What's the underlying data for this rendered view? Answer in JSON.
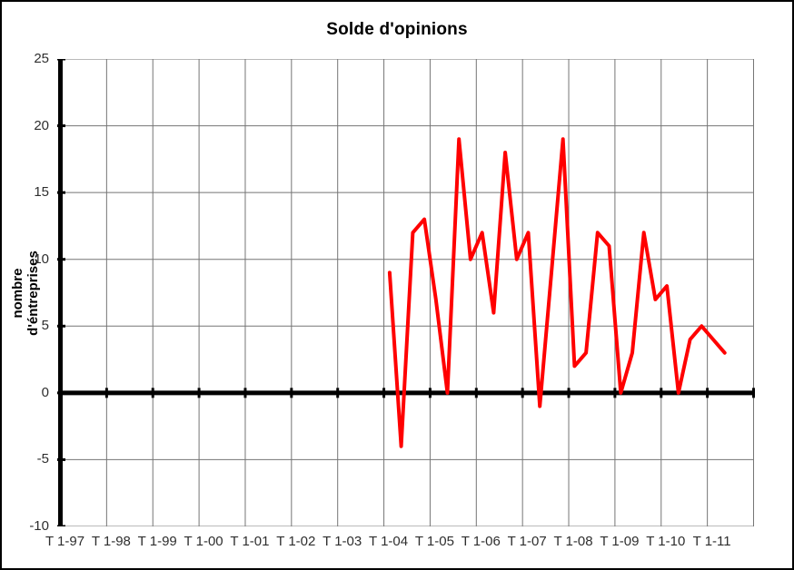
{
  "window": {
    "background_color": "#ffffff",
    "border_color": "#000000"
  },
  "chart_data": {
    "type": "line",
    "title": "Solde d'opinions",
    "ylabel": "nombre d'éntreprises",
    "xlabel": "",
    "ylim": [
      -10,
      25
    ],
    "y_ticks": [
      25,
      20,
      15,
      10,
      5,
      0,
      -5,
      -10
    ],
    "x_tick_labels": [
      "T 1-97",
      "T 1-98",
      "T 1-99",
      "T 1-00",
      "T 1-01",
      "T 1-02",
      "T 1-03",
      "T 1-04",
      "T 1-05",
      "T 1-06",
      "T 1-07",
      "T 1-08",
      "T 1-09",
      "T 1-10",
      "T 1-11"
    ],
    "x_axis_start_year": 1997,
    "quarters_per_year": 4,
    "total_quarter_slots": 60,
    "grid": true,
    "legend": "none",
    "grid_color": "#757575",
    "axis_color": "#000000",
    "tick_text_color": "#2e2e2e",
    "series": [
      {
        "name": "Solde d'opinions",
        "color": "#ff0000",
        "line_width": 4,
        "start_index": 28,
        "start_quarter_label": "T 1-04",
        "quarters": [
          "T1-04",
          "T2-04",
          "T3-04",
          "T4-04",
          "T1-05",
          "T2-05",
          "T3-05",
          "T4-05",
          "T1-06",
          "T2-06",
          "T3-06",
          "T4-06",
          "T1-07",
          "T2-07",
          "T3-07",
          "T4-07",
          "T1-08",
          "T2-08",
          "T3-08",
          "T4-08",
          "T1-09",
          "T2-09",
          "T3-09",
          "T4-09",
          "T1-10",
          "T2-10",
          "T3-10",
          "T4-10",
          "T1-11",
          "T2-11"
        ],
        "values": [
          9,
          -4,
          12,
          13,
          7,
          0,
          19,
          10,
          12,
          6,
          18,
          10,
          12,
          -1,
          9,
          19,
          2,
          3,
          12,
          11,
          0,
          3,
          12,
          7,
          8,
          0,
          4,
          5,
          4,
          3
        ]
      }
    ]
  }
}
